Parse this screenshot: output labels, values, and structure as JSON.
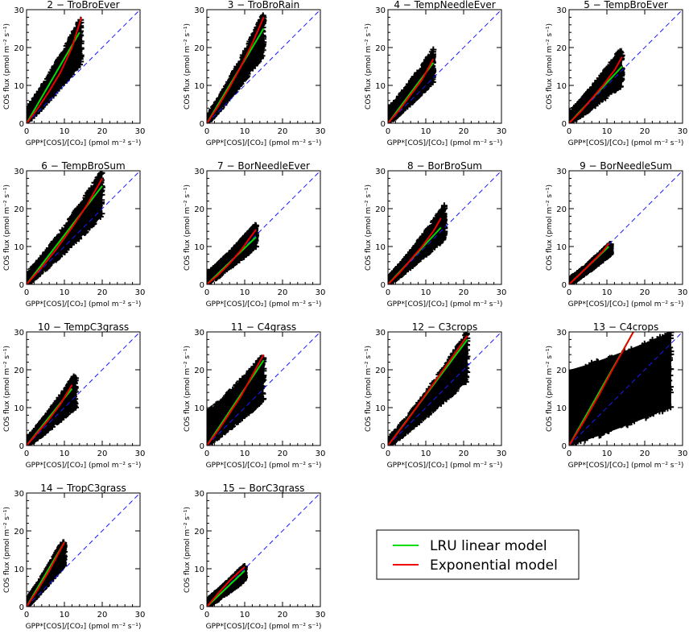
{
  "legend": {
    "items": [
      {
        "label": "LRU linear model",
        "color": "#00dd00"
      },
      {
        "label": "Exponential model",
        "color": "#ee0000"
      }
    ]
  },
  "colors": {
    "scatter": "#000000",
    "linear": "#00dd00",
    "exponential": "#ee0000",
    "one_to_one": "#1a1aff"
  },
  "chart_data": [
    {
      "type": "scatter",
      "title": "2 − TroBroEver",
      "xlabel": "GPP*[COS]/[CO₂] (pmol m⁻² s⁻¹)",
      "ylabel": "COS flux (pmol m⁻² s⁻¹)",
      "xlim": [
        0,
        30
      ],
      "ylim": [
        0,
        30
      ],
      "xticks": [
        "0",
        "10",
        "20",
        "30"
      ],
      "yticks": [
        "0",
        "10",
        "20",
        "30"
      ],
      "point_extent": {
        "x_max": 14.5,
        "y_max": 28,
        "y_min_at_x_max": 16,
        "y_intercept_low": 0,
        "y_intercept_high": 4
      },
      "linear_fit": {
        "x": [
          0,
          14
        ],
        "y": [
          0,
          24
        ]
      },
      "exponential_fit": {
        "x": [
          0,
          3,
          6,
          9,
          12,
          14.5
        ],
        "y": [
          0,
          4,
          8.5,
          13.5,
          20,
          28
        ]
      },
      "one_to_one": true
    },
    {
      "type": "scatter",
      "title": "3 − TroBroRain",
      "xlabel": "GPP*[COS]/[CO₂] (pmol m⁻² s⁻¹)",
      "ylabel": "COS flux (pmol m⁻² s⁻¹)",
      "xlim": [
        0,
        30
      ],
      "ylim": [
        0,
        30
      ],
      "xticks": [
        "0",
        "10",
        "20",
        "30"
      ],
      "yticks": [
        "0",
        "10",
        "20",
        "30"
      ],
      "point_extent": {
        "x_max": 15,
        "y_max": 29,
        "y_min_at_x_max": 18,
        "y_intercept_low": 0,
        "y_intercept_high": 2
      },
      "linear_fit": {
        "x": [
          0,
          15
        ],
        "y": [
          0,
          25
        ]
      },
      "exponential_fit": {
        "x": [
          0,
          3,
          6,
          9,
          12,
          15
        ],
        "y": [
          0,
          4.5,
          9.5,
          15,
          21,
          28
        ]
      },
      "one_to_one": true
    },
    {
      "type": "scatter",
      "title": "4 − TempNeedleEver",
      "xlabel": "GPP*[COS]/[CO₂] (pmol m⁻² s⁻¹)",
      "ylabel": "COS flux (pmol m⁻² s⁻¹)",
      "xlim": [
        0,
        30
      ],
      "ylim": [
        0,
        30
      ],
      "xticks": [
        "0",
        "10",
        "20",
        "30"
      ],
      "yticks": [
        "0",
        "10",
        "20",
        "30"
      ],
      "point_extent": {
        "x_max": 12,
        "y_max": 19.5,
        "y_min_at_x_max": 11,
        "y_intercept_low": 0,
        "y_intercept_high": 4
      },
      "linear_fit": {
        "x": [
          0,
          12
        ],
        "y": [
          0,
          16
        ]
      },
      "exponential_fit": {
        "x": [
          0,
          3,
          6,
          9,
          12
        ],
        "y": [
          0,
          3.5,
          7.5,
          11.5,
          17
        ]
      },
      "one_to_one": true
    },
    {
      "type": "scatter",
      "title": "5 − TempBroEver",
      "xlabel": "GPP*[COS]/[CO₂] (pmol m⁻² s⁻¹)",
      "ylabel": "COS flux (pmol m⁻² s⁻¹)",
      "xlim": [
        0,
        30
      ],
      "ylim": [
        0,
        30
      ],
      "xticks": [
        "0",
        "10",
        "20",
        "30"
      ],
      "yticks": [
        "0",
        "10",
        "20",
        "30"
      ],
      "point_extent": {
        "x_max": 14,
        "y_max": 20,
        "y_min_at_x_max": 10,
        "y_intercept_low": 0,
        "y_intercept_high": 3
      },
      "linear_fit": {
        "x": [
          0,
          14
        ],
        "y": [
          0,
          15
        ]
      },
      "exponential_fit": {
        "x": [
          0,
          3,
          6,
          9,
          12,
          14
        ],
        "y": [
          0,
          3,
          6.5,
          10,
          14,
          17.5
        ]
      },
      "one_to_one": true
    },
    {
      "type": "scatter",
      "title": "6 − TempBroSum",
      "xlabel": "GPP*[COS]/[CO₂] (pmol m⁻² s⁻¹)",
      "ylabel": "COS flux (pmol m⁻² s⁻¹)",
      "xlim": [
        0,
        30
      ],
      "ylim": [
        0,
        30
      ],
      "xticks": [
        "0",
        "10",
        "20",
        "30"
      ],
      "yticks": [
        "0",
        "10",
        "20",
        "30"
      ],
      "point_extent": {
        "x_max": 20,
        "y_max": 30,
        "y_min_at_x_max": 18,
        "y_intercept_low": 0,
        "y_intercept_high": 3
      },
      "linear_fit": {
        "x": [
          0,
          20
        ],
        "y": [
          0,
          26
        ]
      },
      "exponential_fit": {
        "x": [
          0,
          4,
          8,
          12,
          16,
          20
        ],
        "y": [
          0,
          4.5,
          9.5,
          15,
          21,
          28
        ]
      },
      "one_to_one": true
    },
    {
      "type": "scatter",
      "title": "7 − BorNeedleEver",
      "xlabel": "GPP*[COS]/[CO₂] (pmol m⁻² s⁻¹)",
      "ylabel": "COS flux (pmol m⁻² s⁻¹)",
      "xlim": [
        0,
        30
      ],
      "ylim": [
        0,
        30
      ],
      "xticks": [
        "0",
        "10",
        "20",
        "30"
      ],
      "yticks": [
        "0",
        "10",
        "20",
        "30"
      ],
      "point_extent": {
        "x_max": 13,
        "y_max": 16,
        "y_min_at_x_max": 10,
        "y_intercept_low": 0,
        "y_intercept_high": 3
      },
      "linear_fit": {
        "x": [
          0,
          13
        ],
        "y": [
          0,
          12.5
        ]
      },
      "exponential_fit": {
        "x": [
          0,
          3,
          6,
          9,
          13
        ],
        "y": [
          0,
          2.5,
          5.5,
          9,
          14.5
        ]
      },
      "one_to_one": true
    },
    {
      "type": "scatter",
      "title": "8 − BorBroSum",
      "xlabel": "GPP*[COS]/[CO₂] (pmol m⁻² s⁻¹)",
      "ylabel": "COS flux (pmol m⁻² s⁻¹)",
      "xlim": [
        0,
        30
      ],
      "ylim": [
        0,
        30
      ],
      "xticks": [
        "0",
        "10",
        "20",
        "30"
      ],
      "yticks": [
        "0",
        "10",
        "20",
        "30"
      ],
      "point_extent": {
        "x_max": 15,
        "y_max": 21,
        "y_min_at_x_max": 12,
        "y_intercept_low": 0,
        "y_intercept_high": 2
      },
      "linear_fit": {
        "x": [
          0,
          14
        ],
        "y": [
          0,
          15
        ]
      },
      "exponential_fit": {
        "x": [
          0,
          3,
          6,
          9,
          12,
          14
        ],
        "y": [
          0,
          3,
          6.5,
          10,
          14,
          17.5
        ]
      },
      "one_to_one": true
    },
    {
      "type": "scatter",
      "title": "9 − BorNeedleSum",
      "xlabel": "GPP*[COS]/[CO₂] (pmol m⁻² s⁻¹)",
      "ylabel": "COS flux (pmol m⁻² s⁻¹)",
      "xlim": [
        0,
        30
      ],
      "ylim": [
        0,
        30
      ],
      "xticks": [
        "0",
        "10",
        "20",
        "30"
      ],
      "yticks": [
        "0",
        "10",
        "20",
        "30"
      ],
      "point_extent": {
        "x_max": 11,
        "y_max": 11,
        "y_min_at_x_max": 8,
        "y_intercept_low": 0,
        "y_intercept_high": 1.5
      },
      "linear_fit": {
        "x": [
          0,
          10.5
        ],
        "y": [
          0,
          10
        ]
      },
      "exponential_fit": {
        "x": [
          0,
          3,
          6,
          9,
          10.5
        ],
        "y": [
          0,
          2.8,
          5.8,
          8.8,
          10.8
        ]
      },
      "one_to_one": true
    },
    {
      "type": "scatter",
      "title": "10 − TempC3grass",
      "xlabel": "GPP*[COS]/[CO₂] (pmol m⁻² s⁻¹)",
      "ylabel": "COS flux (pmol m⁻² s⁻¹)",
      "xlim": [
        0,
        30
      ],
      "ylim": [
        0,
        30
      ],
      "xticks": [
        "0",
        "10",
        "20",
        "30"
      ],
      "yticks": [
        "0",
        "10",
        "20",
        "30"
      ],
      "point_extent": {
        "x_max": 13,
        "y_max": 19,
        "y_min_at_x_max": 10,
        "y_intercept_low": 0,
        "y_intercept_high": 2
      },
      "linear_fit": {
        "x": [
          0,
          12
        ],
        "y": [
          0,
          15
        ]
      },
      "exponential_fit": {
        "x": [
          0,
          3,
          6,
          9,
          12
        ],
        "y": [
          0,
          3.5,
          7,
          11,
          16
        ]
      },
      "one_to_one": true
    },
    {
      "type": "scatter",
      "title": "11 − C4grass",
      "xlabel": "GPP*[COS]/[CO₂] (pmol m⁻² s⁻¹)",
      "ylabel": "COS flux (pmol m⁻² s⁻¹)",
      "xlim": [
        0,
        30
      ],
      "ylim": [
        0,
        30
      ],
      "xticks": [
        "0",
        "10",
        "20",
        "30"
      ],
      "yticks": [
        "0",
        "10",
        "20",
        "30"
      ],
      "point_extent": {
        "x_max": 15,
        "y_max": 24,
        "y_min_at_x_max": 12,
        "y_intercept_low": 0,
        "y_intercept_high": 9
      },
      "linear_fit": {
        "x": [
          0,
          15
        ],
        "y": [
          0,
          22.5
        ]
      },
      "exponential_fit": {
        "x": [
          0,
          3,
          6,
          9,
          12,
          15
        ],
        "y": [
          0,
          4,
          8.5,
          13,
          18.5,
          24
        ]
      },
      "one_to_one": true
    },
    {
      "type": "scatter",
      "title": "12 − C3crops",
      "xlabel": "GPP*[COS]/[CO₂] (pmol m⁻² s⁻¹)",
      "ylabel": "COS flux (pmol m⁻² s⁻¹)",
      "xlim": [
        0,
        30
      ],
      "ylim": [
        0,
        30
      ],
      "xticks": [
        "0",
        "10",
        "20",
        "30"
      ],
      "yticks": [
        "0",
        "10",
        "20",
        "30"
      ],
      "point_extent": {
        "x_max": 21,
        "y_max": 30,
        "y_min_at_x_max": 17,
        "y_intercept_low": 0,
        "y_intercept_high": 2
      },
      "linear_fit": {
        "x": [
          0,
          21
        ],
        "y": [
          0,
          28
        ]
      },
      "exponential_fit": {
        "x": [
          0,
          5,
          10,
          15,
          21
        ],
        "y": [
          0,
          6.5,
          13.5,
          20.5,
          29
        ]
      },
      "one_to_one": true
    },
    {
      "type": "scatter",
      "title": "13 − C4crops",
      "xlabel": "GPP*[COS]/[CO₂] (pmol m⁻² s⁻¹)",
      "ylabel": "COS flux (pmol m⁻² s⁻¹)",
      "xlim": [
        0,
        30
      ],
      "ylim": [
        0,
        30
      ],
      "xticks": [
        "0",
        "10",
        "20",
        "30"
      ],
      "yticks": [
        "0",
        "10",
        "20",
        "30"
      ],
      "point_extent": {
        "x_max": 27,
        "y_max": 30,
        "y_min_at_x_max": 10,
        "y_intercept_low": 0,
        "y_intercept_high": 20
      },
      "linear_fit": {
        "x": [
          0,
          17
        ],
        "y": [
          0,
          30
        ]
      },
      "exponential_fit": {
        "x": [
          0,
          4,
          8,
          12,
          17
        ],
        "y": [
          0,
          6.5,
          13.5,
          21,
          30
        ]
      },
      "one_to_one": true
    },
    {
      "type": "scatter",
      "title": "14 − TropC3grass",
      "xlabel": "GPP*[COS]/[CO₂] (pmol m⁻² s⁻¹)",
      "ylabel": "COS flux (pmol m⁻² s⁻¹)",
      "xlim": [
        0,
        30
      ],
      "ylim": [
        0,
        30
      ],
      "xticks": [
        "0",
        "10",
        "20",
        "30"
      ],
      "yticks": [
        "0",
        "10",
        "20",
        "30"
      ],
      "point_extent": {
        "x_max": 10,
        "y_max": 18,
        "y_min_at_x_max": 11,
        "y_intercept_low": 0,
        "y_intercept_high": 2
      },
      "linear_fit": {
        "x": [
          0,
          10
        ],
        "y": [
          0,
          17
        ]
      },
      "exponential_fit": {
        "x": [
          0,
          3,
          6,
          10
        ],
        "y": [
          0,
          4.5,
          9.5,
          17
        ]
      },
      "one_to_one": true
    },
    {
      "type": "scatter",
      "title": "15 − BorC3grass",
      "xlabel": "GPP*[COS]/[CO₂] (pmol m⁻² s⁻¹)",
      "ylabel": "COS flux (pmol m⁻² s⁻¹)",
      "xlim": [
        0,
        30
      ],
      "ylim": [
        0,
        30
      ],
      "xticks": [
        "0",
        "10",
        "20",
        "30"
      ],
      "yticks": [
        "0",
        "10",
        "20",
        "30"
      ],
      "point_extent": {
        "x_max": 10,
        "y_max": 11,
        "y_min_at_x_max": 7,
        "y_intercept_low": 0,
        "y_intercept_high": 2
      },
      "linear_fit": {
        "x": [
          0,
          10
        ],
        "y": [
          0,
          9.5
        ]
      },
      "exponential_fit": {
        "x": [
          0,
          3,
          6,
          10
        ],
        "y": [
          0,
          3.5,
          6.8,
          10.5
        ]
      },
      "one_to_one": true
    }
  ]
}
